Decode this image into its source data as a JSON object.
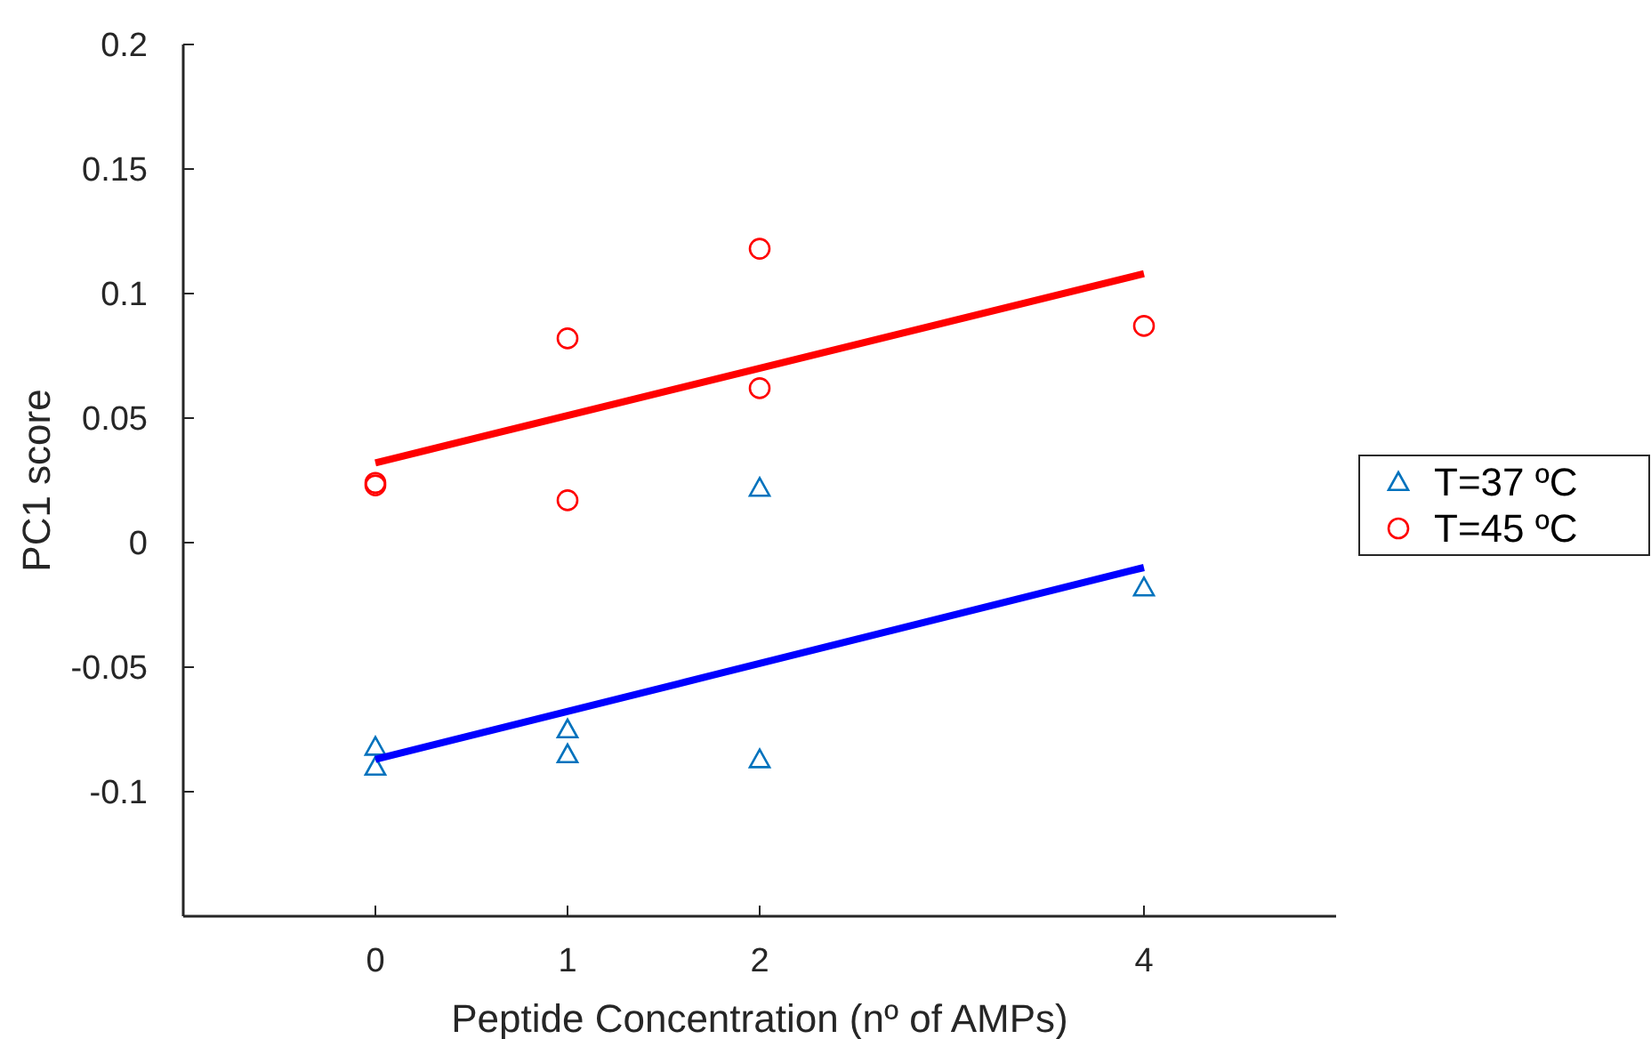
{
  "chart_data": {
    "type": "scatter",
    "xlabel": "Peptide Concentration (nº of AMPs)",
    "ylabel": "PC1 score",
    "xlim": [
      -1,
      5
    ],
    "ylim": [
      -0.15,
      0.2
    ],
    "xticks": [
      0,
      1,
      2,
      4
    ],
    "yticks": [
      0.2,
      0.15,
      0.1,
      0.05,
      0,
      -0.05,
      -0.1
    ],
    "legend": "right",
    "grid": false,
    "series": [
      {
        "name": "T=37 ºC",
        "marker": "triangle",
        "color": "#0072bd",
        "x": [
          0,
          0,
          1,
          1,
          2,
          2,
          4
        ],
        "values": [
          -0.082,
          -0.09,
          -0.075,
          -0.085,
          0.022,
          -0.087,
          -0.018
        ]
      },
      {
        "name": "T=45 ºC",
        "marker": "circle",
        "color": "#ff0000",
        "x": [
          0,
          0,
          1,
          1,
          2,
          2,
          4
        ],
        "values": [
          0.023,
          0.024,
          0.082,
          0.017,
          0.118,
          0.062,
          0.087
        ]
      },
      {
        "type": "line",
        "marker": "none",
        "color": "#0000ff",
        "x": [
          0,
          4
        ],
        "values": [
          -0.087,
          -0.01
        ]
      },
      {
        "type": "line",
        "marker": "none",
        "color": "#ff0000",
        "x": [
          0,
          4
        ],
        "values": [
          0.032,
          0.108
        ]
      }
    ]
  }
}
